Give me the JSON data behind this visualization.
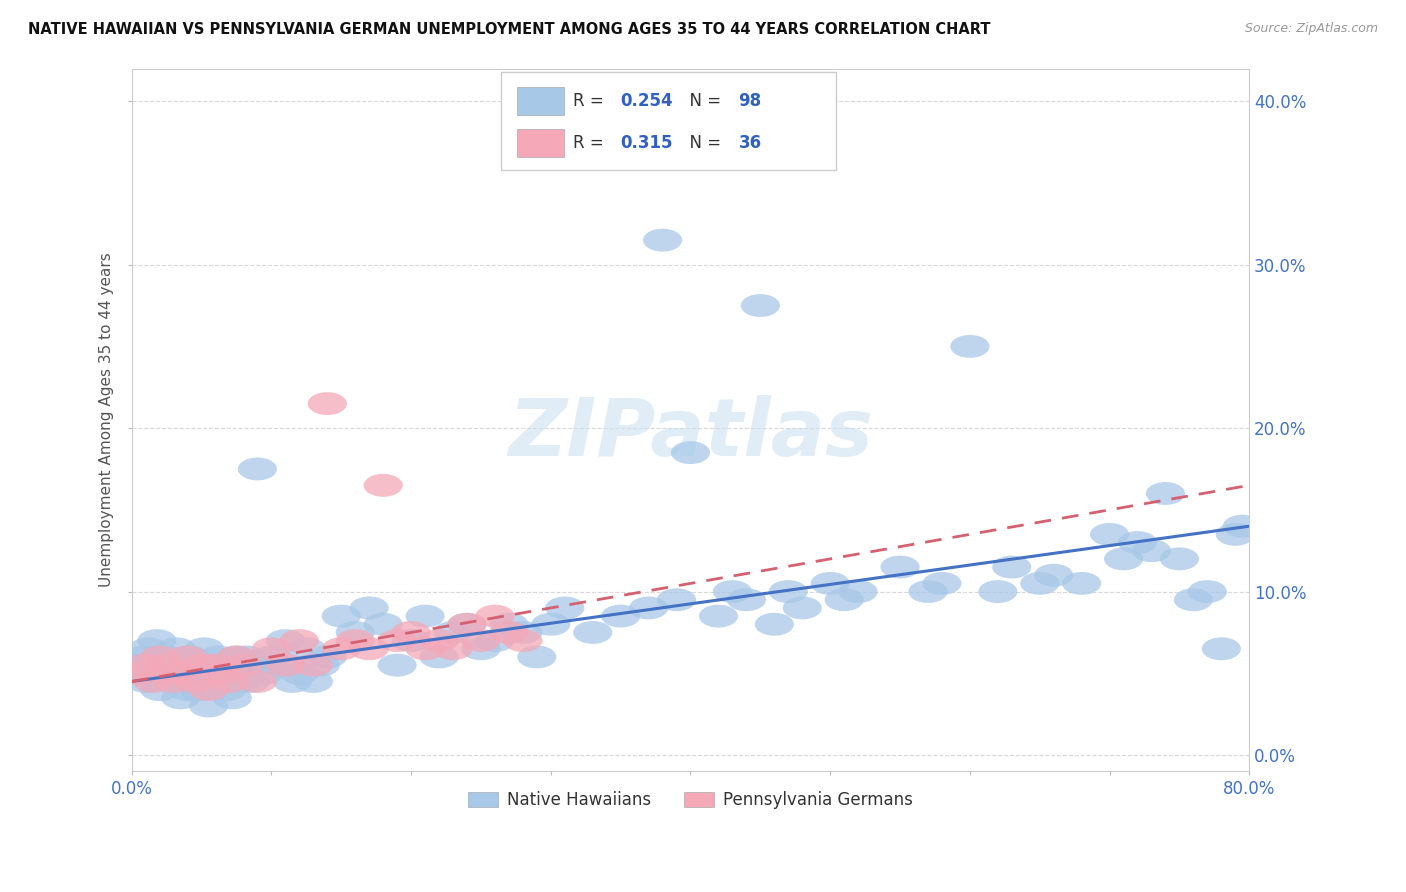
{
  "title": "NATIVE HAWAIIAN VS PENNSYLVANIA GERMAN UNEMPLOYMENT AMONG AGES 35 TO 44 YEARS CORRELATION CHART",
  "source": "Source: ZipAtlas.com",
  "ylabel": "Unemployment Among Ages 35 to 44 years",
  "legend_label1": "Native Hawaiians",
  "legend_label2": "Pennsylvania Germans",
  "R1": "0.254",
  "N1": "98",
  "R2": "0.315",
  "N2": "36",
  "color1": "#a8c8e8",
  "color2": "#f4a8b8",
  "trendline1_color": "#4472c4",
  "trendline2_color": "#d46070",
  "background_color": "#ffffff",
  "watermark": "ZIPatlas",
  "xlim": [
    0,
    80
  ],
  "ylim": [
    -1,
    42
  ],
  "xtick_positions": [
    0,
    10,
    20,
    30,
    40,
    50,
    60,
    70,
    80
  ],
  "ytick_positions": [
    0,
    10,
    20,
    30,
    40
  ],
  "native_hawaiians_x": [
    0.5,
    0.8,
    1.0,
    1.2,
    1.5,
    1.8,
    2.0,
    2.2,
    2.5,
    2.8,
    3.0,
    3.2,
    3.5,
    3.8,
    4.0,
    4.2,
    4.5,
    4.8,
    5.0,
    5.2,
    5.5,
    5.8,
    6.0,
    6.2,
    6.5,
    6.8,
    7.0,
    7.2,
    7.5,
    7.8,
    8.0,
    8.2,
    8.5,
    8.8,
    9.0,
    9.5,
    10.0,
    10.5,
    11.0,
    11.5,
    12.0,
    12.5,
    13.0,
    13.5,
    14.0,
    15.0,
    16.0,
    17.0,
    18.0,
    19.0,
    20.0,
    21.0,
    22.0,
    23.0,
    24.0,
    25.0,
    26.0,
    27.0,
    28.0,
    29.0,
    30.0,
    31.0,
    33.0,
    35.0,
    37.0,
    38.0,
    39.0,
    40.0,
    42.0,
    43.0,
    44.0,
    45.0,
    46.0,
    47.0,
    48.0,
    50.0,
    51.0,
    52.0,
    55.0,
    57.0,
    58.0,
    60.0,
    62.0,
    63.0,
    65.0,
    66.0,
    68.0,
    70.0,
    71.0,
    72.0,
    73.0,
    74.0,
    75.0,
    76.0,
    77.0,
    78.0,
    79.0,
    79.5
  ],
  "native_hawaiians_y": [
    5.5,
    6.0,
    4.5,
    6.5,
    5.0,
    7.0,
    4.0,
    5.5,
    6.0,
    4.5,
    5.0,
    6.5,
    3.5,
    5.5,
    4.0,
    6.0,
    5.5,
    4.0,
    5.0,
    6.5,
    3.0,
    5.5,
    4.5,
    6.0,
    5.0,
    4.0,
    5.5,
    3.5,
    6.0,
    4.5,
    5.0,
    6.0,
    4.5,
    5.5,
    17.5,
    5.0,
    6.0,
    5.5,
    7.0,
    4.5,
    5.0,
    6.5,
    4.5,
    5.5,
    6.0,
    8.5,
    7.5,
    9.0,
    8.0,
    5.5,
    7.0,
    8.5,
    6.0,
    7.5,
    8.0,
    6.5,
    7.0,
    8.0,
    7.5,
    6.0,
    8.0,
    9.0,
    7.5,
    8.5,
    9.0,
    31.5,
    9.5,
    18.5,
    8.5,
    10.0,
    9.5,
    27.5,
    8.0,
    10.0,
    9.0,
    10.5,
    9.5,
    10.0,
    11.5,
    10.0,
    10.5,
    25.0,
    10.0,
    11.5,
    10.5,
    11.0,
    10.5,
    13.5,
    12.0,
    13.0,
    12.5,
    16.0,
    12.0,
    9.5,
    10.0,
    6.5,
    13.5,
    14.0
  ],
  "pa_german_x": [
    0.5,
    1.0,
    1.5,
    2.0,
    2.5,
    3.0,
    3.5,
    4.0,
    4.5,
    5.0,
    5.5,
    6.0,
    6.5,
    7.0,
    7.5,
    8.0,
    9.0,
    10.0,
    11.0,
    12.0,
    13.0,
    14.0,
    15.0,
    16.0,
    17.0,
    18.0,
    19.0,
    20.0,
    21.0,
    22.0,
    23.0,
    24.0,
    25.0,
    26.0,
    27.0,
    28.0
  ],
  "pa_german_y": [
    5.0,
    5.5,
    4.5,
    6.0,
    5.5,
    4.5,
    5.0,
    6.0,
    4.5,
    5.5,
    4.0,
    5.5,
    5.0,
    4.5,
    6.0,
    5.5,
    4.5,
    6.5,
    5.5,
    7.0,
    5.5,
    21.5,
    6.5,
    7.0,
    6.5,
    16.5,
    7.0,
    7.5,
    6.5,
    7.0,
    6.5,
    8.0,
    7.0,
    8.5,
    7.5,
    7.0
  ],
  "trendline1_x0": 0,
  "trendline1_x1": 80,
  "trendline1_y0": 4.5,
  "trendline1_y1": 14.0,
  "trendline2_x0": 0,
  "trendline2_x1": 80,
  "trendline2_y0": 4.5,
  "trendline2_y1": 16.5
}
